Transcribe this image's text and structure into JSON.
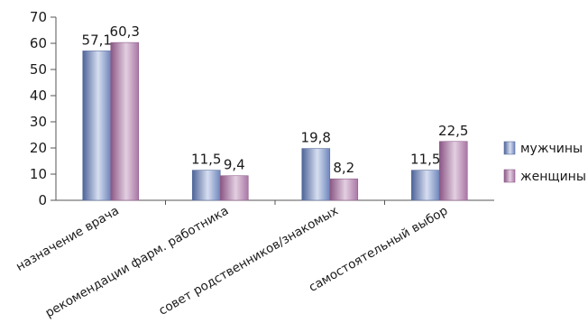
{
  "chart_data": {
    "type": "bar",
    "title": "",
    "xlabel": "",
    "ylabel": "",
    "ylim": [
      0,
      70
    ],
    "yticks": [
      "0",
      "10",
      "20",
      "30",
      "40",
      "50",
      "60",
      "70"
    ],
    "ytick_values": [
      0,
      10,
      20,
      30,
      40,
      50,
      60,
      70
    ],
    "grid": false,
    "legend_position": "right",
    "categories": [
      "назначение врача",
      "рекомендации фарм. работника",
      "совет родственников/знакомых",
      "самостоятельный выбор"
    ],
    "series": [
      {
        "name": "мужчины",
        "values": [
          57.1,
          11.5,
          19.8,
          11.5
        ],
        "value_labels": [
          "57,1",
          "11,5",
          "19,8",
          "11,5"
        ],
        "color": "#7d92c0"
      },
      {
        "name": "женщины",
        "values": [
          60.3,
          9.4,
          8.2,
          22.5
        ],
        "value_labels": [
          "60,3",
          "9,4",
          "8,2",
          "22,5"
        ],
        "color": "#b07fac"
      }
    ]
  }
}
